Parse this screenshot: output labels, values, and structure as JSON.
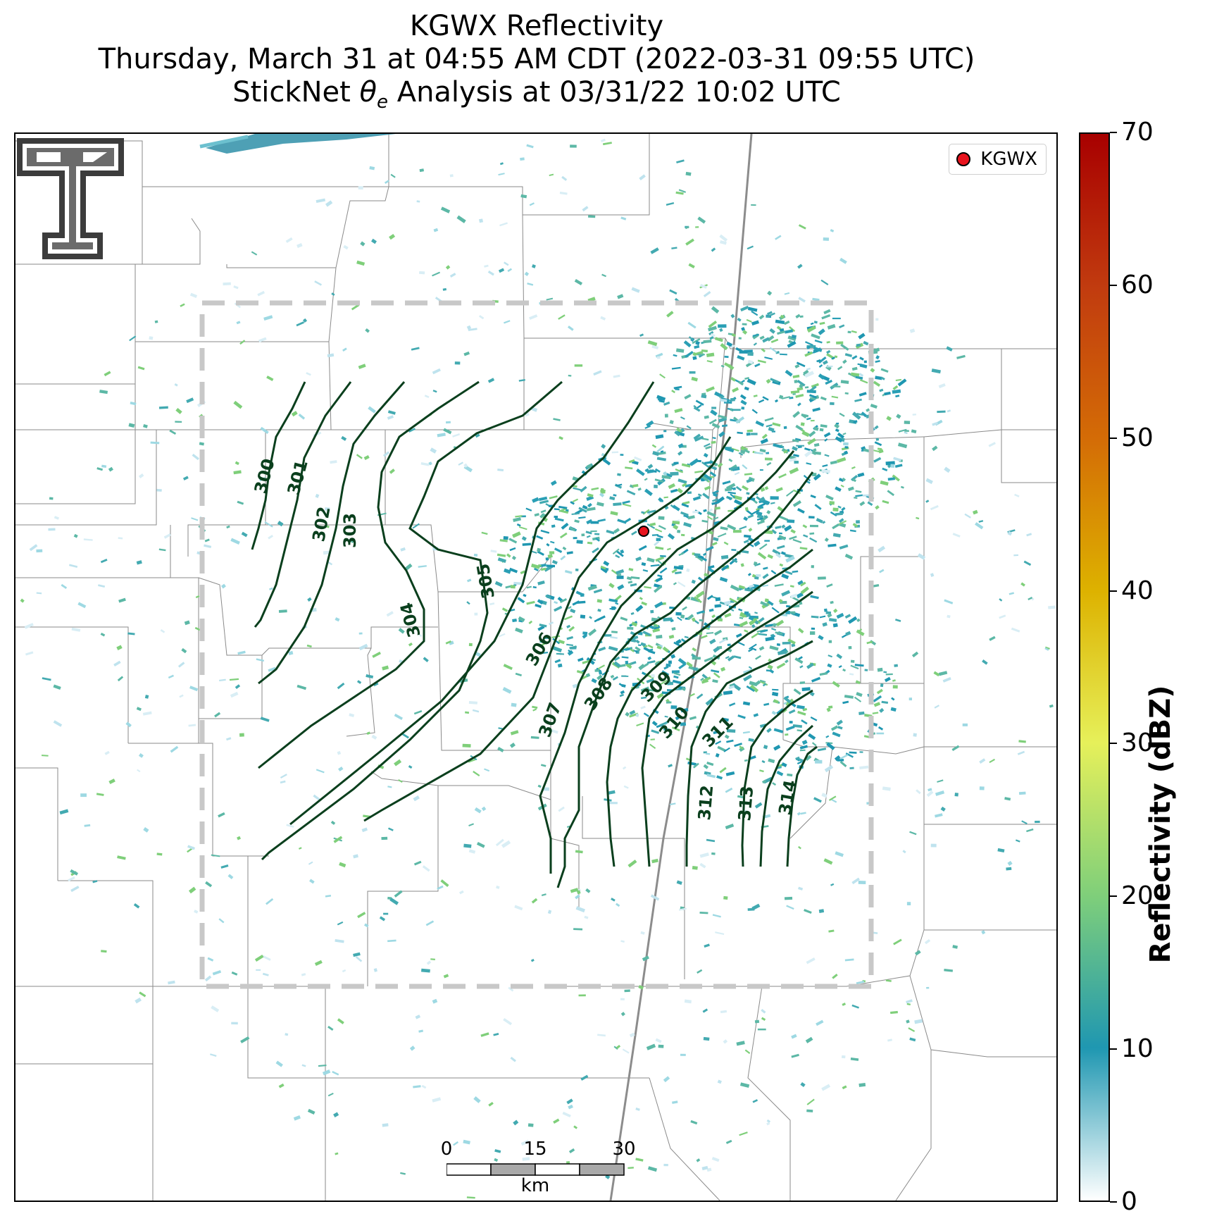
{
  "title": {
    "line1": "KGWX Reflectivity",
    "line2": "Thursday, March 31 at 04:55 AM CDT (2022-03-31 09:55 UTC)",
    "line3_prefix": "StickNet ",
    "line3_symbol": "θ",
    "line3_sub": "e",
    "line3_suffix": " Analysis at 03/31/22 10:02 UTC"
  },
  "legend": {
    "label": "KGWX"
  },
  "colorbar": {
    "title": "Reflectivity (dBZ)",
    "ticks": [
      "0",
      "10",
      "20",
      "30",
      "40",
      "50",
      "60",
      "70"
    ],
    "range": [
      0,
      70
    ],
    "colors": [
      "#ffffff",
      "#1f97b1",
      "#7fcf7a",
      "#e6f05a",
      "#ddb200",
      "#d46c06",
      "#c13b0f",
      "#a80000"
    ]
  },
  "contours": {
    "color": "#0a3f1d",
    "labels": [
      "300",
      "301",
      "302",
      "303",
      "304",
      "305",
      "306",
      "307",
      "308",
      "309",
      "310",
      "311",
      "312",
      "313",
      "314"
    ]
  },
  "scalebar": {
    "ticks": [
      "0",
      "15",
      "30"
    ],
    "unit": "km"
  },
  "analysis_box": {
    "color": "#c8c8c8",
    "style": "dashed"
  },
  "radar_site": {
    "name": "KGWX",
    "color": "#e8141e"
  },
  "logo": {
    "name": "texas-tech-double-t-logo"
  }
}
